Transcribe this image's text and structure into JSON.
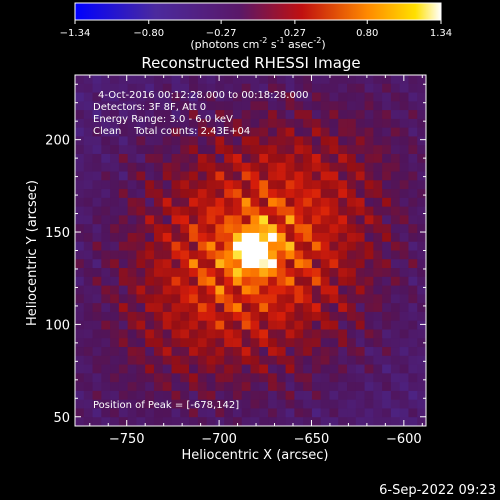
{
  "colorbar": {
    "ticks": [
      "-1.34",
      "-0.80",
      "-0.27",
      "0.27",
      "0.80",
      "1.34"
    ],
    "unit": {
      "prefix": "(photons cm",
      "exp1": "-2",
      "mid1": " s",
      "exp2": "-1",
      "mid2": " asec",
      "exp3": "-2",
      "suffix": ")"
    },
    "range": [
      -1.34,
      1.34
    ]
  },
  "chart_data": {
    "type": "heatmap",
    "title": "Reconstructed RHESSI Image",
    "xlabel": "Heliocentric X (arcsec)",
    "ylabel": "Heliocentric Y (arcsec)",
    "xlim": [
      -778,
      -588
    ],
    "ylim": [
      45,
      235
    ],
    "x_ticks": [
      -750,
      -700,
      -650,
      -600
    ],
    "x_tick_labels": [
      "−750",
      "−700",
      "−650",
      "−600"
    ],
    "y_ticks": [
      50,
      100,
      150,
      200
    ],
    "y_tick_labels": [
      "50",
      "100",
      "150",
      "200"
    ],
    "annotations": [
      "4-Oct-2016 00:12:28.000 to 00:18:28.000",
      "Detectors: 3F 8F, Att 0",
      "Energy Range: 3.0 - 6.0 keV",
      "Clean    Total counts: 2.43E+04"
    ],
    "peak_label": "Position of Peak = [-678,142]",
    "peak": {
      "x": -678,
      "y": 142
    },
    "colormap": "rhessi-blue-purple-red-yellow-white"
  },
  "footer_timestamp": "6-Sep-2022 09:23"
}
